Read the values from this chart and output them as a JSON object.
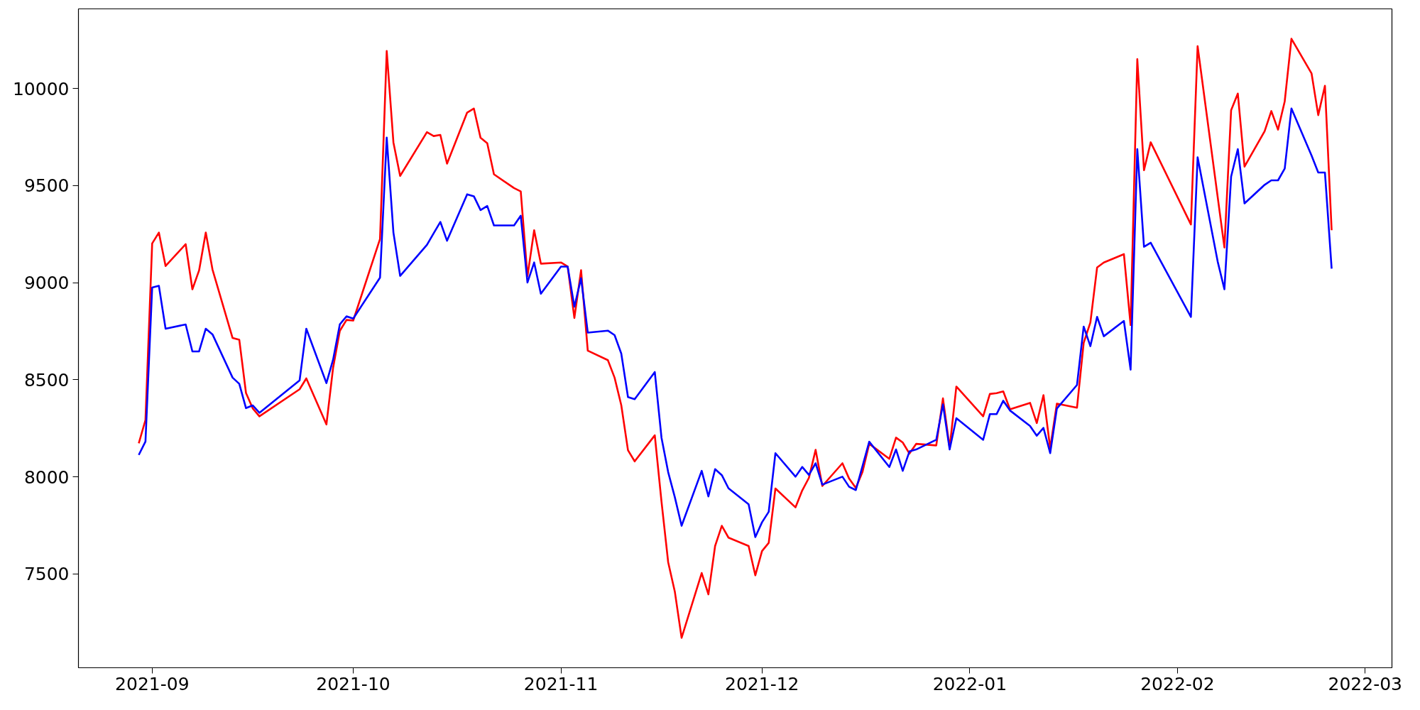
{
  "chart_data": {
    "type": "line",
    "x": [
      "2021-08-30",
      "2021-08-31",
      "2021-09-01",
      "2021-09-02",
      "2021-09-03",
      "2021-09-06",
      "2021-09-07",
      "2021-09-08",
      "2021-09-09",
      "2021-09-10",
      "2021-09-13",
      "2021-09-14",
      "2021-09-15",
      "2021-09-16",
      "2021-09-17",
      "2021-09-23",
      "2021-09-24",
      "2021-09-27",
      "2021-09-28",
      "2021-09-29",
      "2021-09-30",
      "2021-10-01",
      "2021-10-05",
      "2021-10-06",
      "2021-10-07",
      "2021-10-08",
      "2021-10-12",
      "2021-10-13",
      "2021-10-14",
      "2021-10-15",
      "2021-10-18",
      "2021-10-19",
      "2021-10-20",
      "2021-10-21",
      "2021-10-22",
      "2021-10-25",
      "2021-10-26",
      "2021-10-27",
      "2021-10-28",
      "2021-10-29",
      "2021-11-01",
      "2021-11-02",
      "2021-11-03",
      "2021-11-04",
      "2021-11-05",
      "2021-11-08",
      "2021-11-09",
      "2021-11-10",
      "2021-11-11",
      "2021-11-12",
      "2021-11-15",
      "2021-11-16",
      "2021-11-17",
      "2021-11-18",
      "2021-11-19",
      "2021-11-22",
      "2021-11-23",
      "2021-11-24",
      "2021-11-25",
      "2021-11-26",
      "2021-11-29",
      "2021-11-30",
      "2021-12-01",
      "2021-12-02",
      "2021-12-03",
      "2021-12-06",
      "2021-12-07",
      "2021-12-08",
      "2021-12-09",
      "2021-12-10",
      "2021-12-13",
      "2021-12-14",
      "2021-12-15",
      "2021-12-16",
      "2021-12-17",
      "2021-12-20",
      "2021-12-21",
      "2021-12-22",
      "2021-12-23",
      "2021-12-24",
      "2021-12-27",
      "2021-12-28",
      "2021-12-29",
      "2021-12-30",
      "2022-01-03",
      "2022-01-04",
      "2022-01-05",
      "2022-01-06",
      "2022-01-07",
      "2022-01-10",
      "2022-01-11",
      "2022-01-12",
      "2022-01-13",
      "2022-01-14",
      "2022-01-17",
      "2022-01-18",
      "2022-01-19",
      "2022-01-20",
      "2022-01-21",
      "2022-01-24",
      "2022-01-25",
      "2022-01-26",
      "2022-01-27",
      "2022-01-28",
      "2022-02-03",
      "2022-02-04",
      "2022-02-07",
      "2022-02-08",
      "2022-02-09",
      "2022-02-10",
      "2022-02-11",
      "2022-02-14",
      "2022-02-15",
      "2022-02-16",
      "2022-02-17",
      "2022-02-18",
      "2022-02-21",
      "2022-02-22",
      "2022-02-23",
      "2022-02-24"
    ],
    "series": [
      {
        "color": "#ff0000",
        "values": [
          8173,
          8293,
          9202,
          9258,
          9086,
          9198,
          8966,
          9063,
          9258,
          9068,
          8715,
          8706,
          8432,
          8353,
          8312,
          8451,
          8507,
          8270,
          8562,
          8752,
          8808,
          8805,
          9225,
          10193,
          9722,
          9550,
          9775,
          9755,
          9761,
          9613,
          9876,
          9897,
          9746,
          9718,
          9558,
          9487,
          9470,
          9033,
          9270,
          9098,
          9104,
          9083,
          8818,
          9064,
          8650,
          8601,
          8511,
          8369,
          8137,
          8080,
          8214,
          7873,
          7560,
          7407,
          7171,
          7505,
          7395,
          7644,
          7748,
          7687,
          7644,
          7493,
          7618,
          7660,
          7940,
          7843,
          7930,
          7995,
          8139,
          7953,
          8070,
          7991,
          7943,
          8026,
          8170,
          8093,
          8202,
          8177,
          8120,
          8170,
          8162,
          8404,
          8150,
          8465,
          8312,
          8427,
          8431,
          8440,
          8348,
          8381,
          8277,
          8421,
          8148,
          8377,
          8356,
          8690,
          8795,
          9078,
          9104,
          9147,
          8782,
          10151,
          9579,
          9723,
          9300,
          10218,
          9440,
          9181,
          9888,
          9974,
          9598,
          9780,
          9884,
          9788,
          9934,
          10256,
          10078,
          9863,
          10014,
          9270
        ]
      },
      {
        "color": "#0000ff",
        "values": [
          8113,
          8182,
          8975,
          8984,
          8763,
          8785,
          8646,
          8646,
          8763,
          8734,
          8511,
          8479,
          8354,
          8368,
          8330,
          8497,
          8763,
          8483,
          8604,
          8785,
          8827,
          8815,
          9026,
          9747,
          9258,
          9035,
          9195,
          9254,
          9313,
          9216,
          9455,
          9445,
          9374,
          9395,
          9295,
          9295,
          9345,
          9001,
          9104,
          8943,
          9083,
          9083,
          8876,
          9023,
          8743,
          8753,
          8730,
          8635,
          8411,
          8400,
          8540,
          8202,
          8024,
          7894,
          7748,
          8031,
          7899,
          8040,
          8009,
          7941,
          7859,
          7690,
          7766,
          7820,
          8122,
          8001,
          8051,
          8010,
          8070,
          7960,
          8001,
          7949,
          7932,
          8056,
          8181,
          8051,
          8141,
          8031,
          8131,
          8141,
          8191,
          8373,
          8141,
          8302,
          8191,
          8323,
          8323,
          8392,
          8342,
          8262,
          8212,
          8252,
          8122,
          8352,
          8473,
          8774,
          8673,
          8824,
          8724,
          8803,
          8552,
          9688,
          9185,
          9206,
          8824,
          9646,
          9108,
          8966,
          9546,
          9688,
          9408,
          9504,
          9527,
          9527,
          9588,
          9897,
          9655,
          9567,
          9567,
          9072
        ]
      }
    ],
    "xlim": [
      "2021-08-21",
      "2022-03-05"
    ],
    "xticks": [
      {
        "value": "2021-09-01",
        "label": "2021-09"
      },
      {
        "value": "2021-10-01",
        "label": "2021-10"
      },
      {
        "value": "2021-11-01",
        "label": "2021-11"
      },
      {
        "value": "2021-12-01",
        "label": "2021-12"
      },
      {
        "value": "2022-01-01",
        "label": "2022-01"
      },
      {
        "value": "2022-02-01",
        "label": "2022-02"
      },
      {
        "value": "2022-03-01",
        "label": "2022-03"
      }
    ],
    "ylim": [
      7017,
      10410
    ],
    "yticks": [
      7500,
      8000,
      8500,
      9000,
      9500,
      10000
    ],
    "grid": false,
    "line_style": "solid",
    "marker": "none"
  }
}
